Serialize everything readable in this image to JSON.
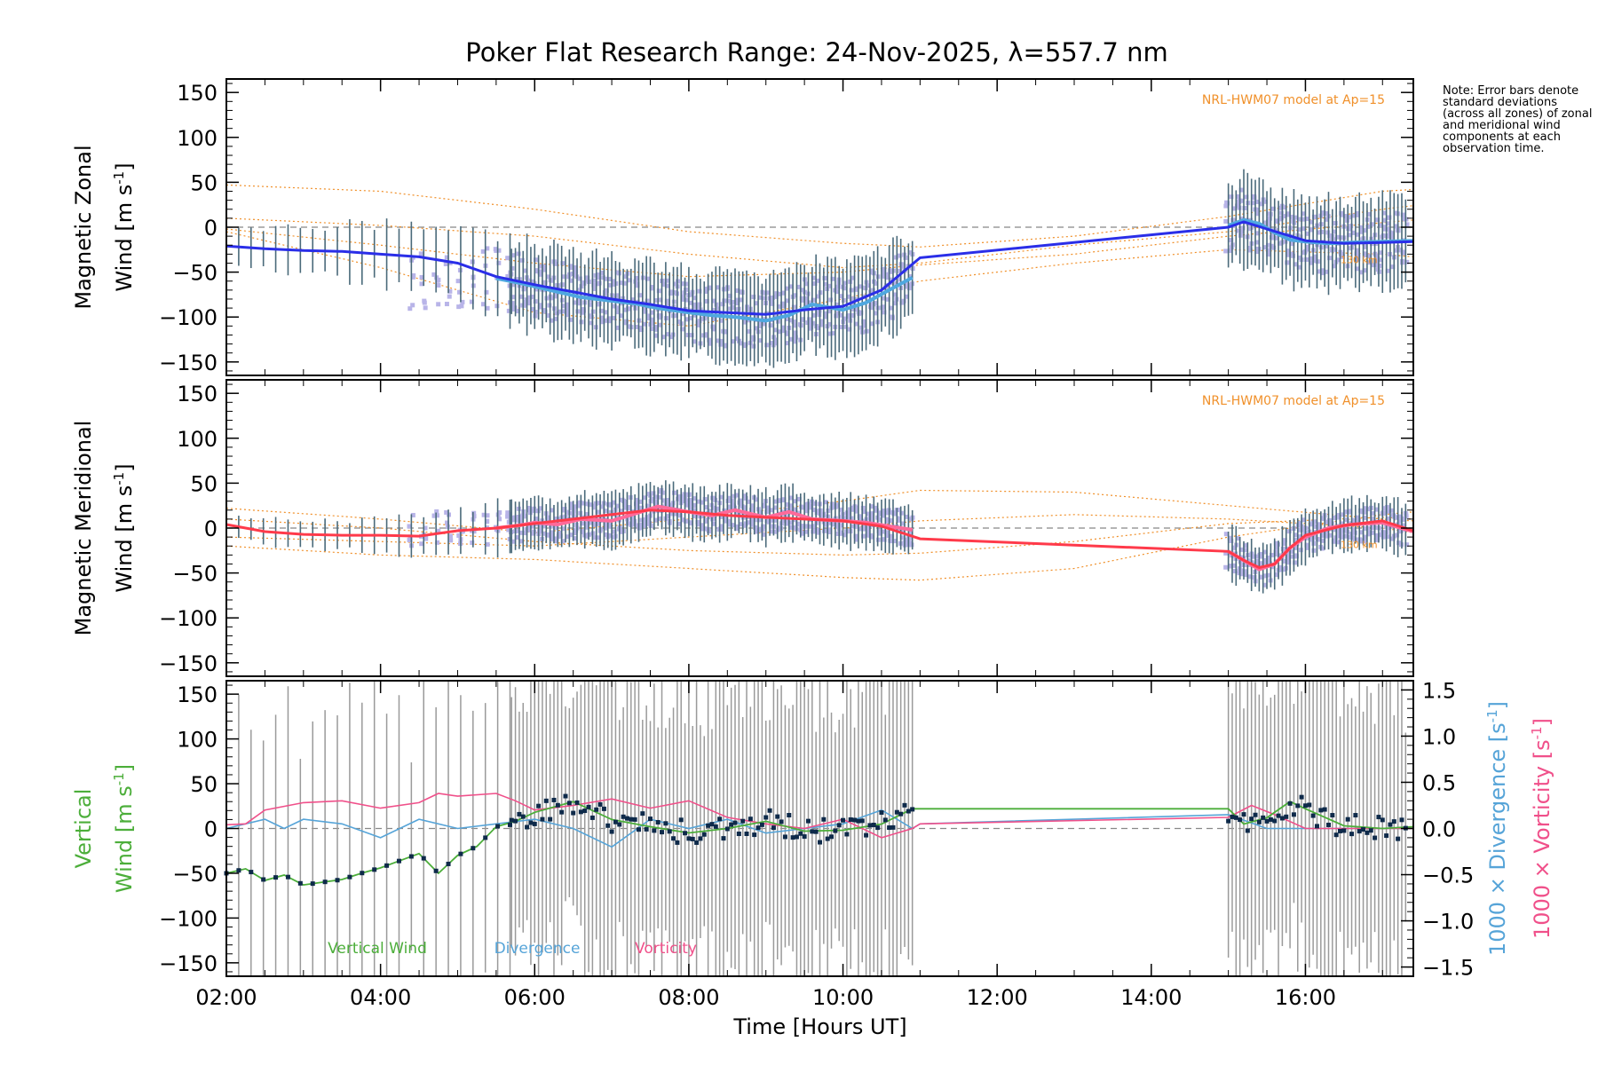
{
  "chart_data": {
    "type": "line",
    "title": "Poker Flat Research Range: 24-Nov-2025, λ=557.7 nm",
    "xlabel": "Time [Hours UT]",
    "xlim": [
      2.0,
      17.4
    ],
    "x_ticks": [
      2,
      4,
      6,
      8,
      10,
      12,
      14,
      16
    ],
    "x_tick_labels": [
      "02:00",
      "04:00",
      "06:00",
      "08:00",
      "10:00",
      "12:00",
      "14:00",
      "16:00"
    ],
    "note": "Note: Error bars denote standard deviations (across all zones) of zonal and meridional wind components at each observation time.",
    "colors": {
      "zonal": "#2a2ee8",
      "zonal_light": "#4fa8e0",
      "meridional": "#ff3a4a",
      "meridional_light": "#ff6a9a",
      "model": "#f0902a",
      "scatter": "#b8b4e8",
      "errorbar": "#4a6a7a",
      "vertical": "#4cae3a",
      "divergence": "#56a4d8",
      "vorticity": "#f0508a",
      "vert_error": "#9a9a9a"
    },
    "panels": [
      {
        "name": "zonal",
        "ylabel_line1": "Magnetic Zonal",
        "ylabel_line2": "Wind [m s",
        "ylabel_exp": "-1",
        "ylabel_close": "]",
        "ylim": [
          -165,
          165
        ],
        "y_ticks": [
          -150,
          -100,
          -50,
          0,
          50,
          100,
          150
        ],
        "y_tick_labels": [
          "−150",
          "−100",
          "−50",
          "0",
          "50",
          "100",
          "150"
        ],
        "model_label": "NRL-HWM07 model at Ap=15",
        "alt_label": "130 km",
        "mean_series": {
          "x": [
            2.0,
            2.5,
            3.0,
            3.5,
            4.0,
            4.5,
            5.0,
            5.5,
            6.0,
            6.5,
            7.0,
            7.5,
            8.0,
            8.5,
            9.0,
            9.5,
            10.0,
            10.5,
            11.0,
            15.0,
            15.2,
            15.5,
            16.0,
            16.5,
            17.0,
            17.4
          ],
          "y": [
            -21,
            -24,
            -26,
            -27,
            -30,
            -33,
            -40,
            -55,
            -64,
            -72,
            -80,
            -86,
            -93,
            -95,
            -97,
            -92,
            -88,
            -70,
            -34,
            0,
            6,
            -2,
            -15,
            -18,
            -17,
            -16
          ]
        },
        "inner_series": {
          "x": [
            5.5,
            5.8,
            6.0,
            6.3,
            6.6,
            7.0,
            7.3,
            7.6,
            8.0,
            8.3,
            8.6,
            9.0,
            9.3,
            9.6,
            10.0,
            10.3,
            10.6,
            10.9,
            15.0,
            15.2,
            15.4,
            15.6,
            15.8,
            16.0,
            16.3,
            16.6,
            17.0,
            17.4
          ],
          "y": [
            -57,
            -62,
            -66,
            -72,
            -78,
            -82,
            -85,
            -90,
            -95,
            -98,
            -100,
            -104,
            -98,
            -86,
            -92,
            -84,
            -70,
            -56,
            2,
            8,
            4,
            -6,
            -14,
            -16,
            -18,
            -17,
            -16,
            -15
          ]
        },
        "std": 48,
        "model_curves": [
          {
            "x": [
              2,
              4,
              6,
              8,
              10,
              11,
              13,
              15,
              17,
              17.4
            ],
            "y": [
              47,
              40,
              20,
              -5,
              -18,
              -22,
              -10,
              12,
              40,
              42
            ]
          },
          {
            "x": [
              2,
              4,
              6,
              8,
              10,
              11,
              13,
              15,
              17,
              17.4
            ],
            "y": [
              -5,
              -45,
              -95,
              -110,
              -80,
              -60,
              -40,
              -25,
              -30,
              -33
            ]
          },
          {
            "x": [
              2,
              4,
              6,
              8,
              10,
              11,
              13,
              15,
              17,
              17.4
            ],
            "y": [
              -2,
              -20,
              -40,
              -55,
              -50,
              -42,
              -30,
              -10,
              5,
              8
            ]
          },
          {
            "x": [
              2,
              4,
              6,
              8,
              10,
              11,
              13,
              15,
              17,
              17.4
            ],
            "y": [
              10,
              2,
              -10,
              -30,
              -45,
              -40,
              -20,
              -5,
              20,
              24
            ]
          }
        ]
      },
      {
        "name": "meridional",
        "ylabel_line1": "Magnetic Meridional",
        "ylabel_line2": "Wind [m s",
        "ylabel_exp": "-1",
        "ylabel_close": "]",
        "ylim": [
          -165,
          165
        ],
        "y_ticks": [
          -150,
          -100,
          -50,
          0,
          50,
          100,
          150
        ],
        "y_tick_labels": [
          "−150",
          "−100",
          "−50",
          "0",
          "50",
          "100",
          "150"
        ],
        "model_label": "NRL-HWM07 model at Ap=15",
        "alt_label": "130 km",
        "mean_series": {
          "x": [
            2.0,
            2.5,
            3.0,
            3.5,
            4.0,
            4.5,
            5.0,
            5.5,
            6.0,
            6.5,
            7.0,
            7.5,
            8.0,
            8.5,
            9.0,
            9.5,
            10.0,
            10.5,
            11.0,
            15.0,
            15.2,
            15.4,
            15.6,
            15.8,
            16.0,
            16.5,
            17.0,
            17.4
          ],
          "y": [
            4,
            -4,
            -7,
            -8,
            -8,
            -9,
            -3,
            0,
            5,
            10,
            15,
            20,
            18,
            14,
            12,
            10,
            8,
            2,
            -12,
            -26,
            -36,
            -44,
            -40,
            -22,
            -8,
            3,
            8,
            -3
          ]
        },
        "inner_series": {
          "x": [
            5.5,
            5.8,
            6.0,
            6.3,
            6.6,
            7.0,
            7.3,
            7.6,
            8.0,
            8.3,
            8.6,
            9.0,
            9.3,
            9.6,
            10.0,
            10.3,
            10.6,
            10.9,
            15.0,
            15.2,
            15.4,
            15.6,
            15.8,
            16.0,
            16.3,
            16.6,
            17.0,
            17.4
          ],
          "y": [
            0,
            3,
            6,
            4,
            10,
            8,
            16,
            24,
            18,
            14,
            20,
            12,
            18,
            10,
            8,
            6,
            2,
            -2,
            -26,
            -36,
            -46,
            -40,
            -22,
            -10,
            0,
            4,
            6,
            -4
          ]
        },
        "std": 28,
        "model_curves": [
          {
            "x": [
              2,
              4,
              6,
              8,
              10,
              11,
              13,
              15,
              17,
              17.4
            ],
            "y": [
              22,
              10,
              -5,
              10,
              30,
              42,
              40,
              25,
              10,
              8
            ]
          },
          {
            "x": [
              2,
              4,
              6,
              8,
              10,
              11,
              13,
              15,
              17,
              17.4
            ],
            "y": [
              -20,
              -30,
              -35,
              -45,
              -55,
              -58,
              -45,
              -10,
              15,
              18
            ]
          },
          {
            "x": [
              2,
              4,
              6,
              8,
              10,
              11,
              13,
              15,
              17,
              17.4
            ],
            "y": [
              10,
              0,
              -15,
              -25,
              -30,
              -28,
              -15,
              5,
              12,
              10
            ]
          },
          {
            "x": [
              2,
              4,
              6,
              8,
              10,
              11,
              13,
              15,
              17,
              17.4
            ],
            "y": [
              -10,
              -15,
              -20,
              -10,
              0,
              8,
              15,
              10,
              0,
              -5
            ]
          }
        ]
      },
      {
        "name": "vertical",
        "ylabel_line1": "Vertical",
        "ylabel_line2": "Wind [m s",
        "ylabel_exp": "-1",
        "ylabel_close": "]",
        "ylim": [
          -165,
          165
        ],
        "y_ticks": [
          -150,
          -100,
          -50,
          0,
          50,
          100,
          150
        ],
        "y_tick_labels": [
          "−150",
          "−100",
          "−50",
          "0",
          "50",
          "100",
          "150"
        ],
        "right_ylim": [
          -1.6,
          1.6
        ],
        "right_ticks": [
          -1.5,
          -1.0,
          -0.5,
          0.0,
          0.5,
          1.0,
          1.5
        ],
        "right_tick_labels": [
          "−1.5",
          "−1.0",
          "−0.5",
          "0.0",
          "0.5",
          "1.0",
          "1.5"
        ],
        "right_label_div": "1000 × Divergence [s",
        "right_label_vort": "1000 × Vorticity [s",
        "right_label_exp": "-1",
        "right_label_close": "]",
        "legend": [
          "Vertical Wind",
          "Divergence",
          "Vorticity"
        ],
        "vertical_series": {
          "x": [
            2.0,
            2.25,
            2.5,
            2.75,
            3.0,
            3.25,
            3.5,
            3.75,
            4.0,
            4.25,
            4.5,
            4.75,
            5.0,
            5.25,
            5.5,
            5.75,
            6.0,
            6.5,
            7.0,
            7.5,
            8.0,
            8.5,
            9.0,
            9.5,
            10.0,
            10.5,
            10.9,
            11.0,
            15.0,
            15.2,
            15.5,
            15.8,
            16.0,
            16.5,
            17.0,
            17.4
          ],
          "y": [
            -50,
            -45,
            -58,
            -52,
            -63,
            -60,
            -57,
            -50,
            -44,
            -36,
            -28,
            -50,
            -30,
            -20,
            2,
            8,
            18,
            30,
            10,
            2,
            -5,
            0,
            8,
            -3,
            -2,
            5,
            22,
            22,
            22,
            5,
            12,
            30,
            22,
            3,
            0,
            2
          ]
        },
        "divergence_series": {
          "x": [
            2.0,
            2.5,
            2.75,
            3.0,
            3.5,
            4.0,
            4.5,
            5.0,
            5.5,
            6.0,
            6.5,
            7.0,
            7.5,
            8.0,
            8.5,
            9.0,
            9.5,
            10.0,
            10.5,
            10.9,
            11.0,
            15.0,
            15.5,
            16.0,
            16.5,
            17.0,
            17.4
          ],
          "y": [
            0.0,
            0.1,
            0.0,
            0.1,
            0.05,
            -0.1,
            0.1,
            0.0,
            0.05,
            0.1,
            0.0,
            -0.2,
            0.1,
            0.0,
            0.1,
            -0.05,
            0.0,
            0.05,
            0.2,
            0.0,
            0.05,
            0.15,
            0.0,
            0.0,
            0.0,
            0.0,
            0.0
          ]
        },
        "vorticity_series": {
          "x": [
            2.0,
            2.25,
            2.5,
            3.0,
            3.5,
            4.0,
            4.5,
            4.75,
            5.0,
            5.5,
            5.75,
            6.0,
            6.5,
            7.0,
            7.5,
            8.0,
            8.5,
            9.0,
            9.5,
            10.0,
            10.5,
            10.9,
            11.0,
            15.0,
            15.3,
            15.6,
            16.0,
            16.5,
            17.0,
            17.4
          ],
          "y": [
            0.04,
            0.05,
            0.2,
            0.28,
            0.3,
            0.22,
            0.28,
            0.38,
            0.35,
            0.38,
            0.3,
            0.2,
            0.25,
            0.32,
            0.22,
            0.3,
            0.12,
            0.05,
            0.0,
            0.1,
            -0.1,
            0.0,
            0.05,
            0.12,
            0.25,
            0.15,
            0.0,
            0.0,
            0.0,
            0.0
          ]
        },
        "std": 190
      }
    ]
  }
}
